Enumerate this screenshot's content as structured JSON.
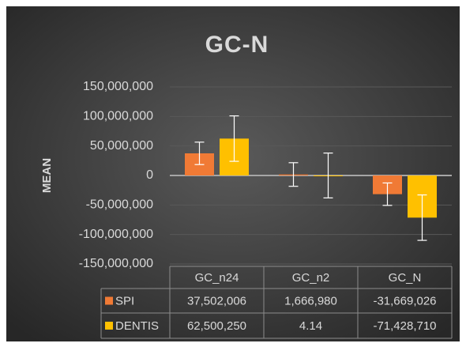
{
  "chart_data": {
    "type": "bar",
    "title": "GC-N",
    "y_label": "MEAN",
    "categories": [
      "GC_n24",
      "GC_n2",
      "GC_N"
    ],
    "series": [
      {
        "name": "SPI",
        "color": "#f07a35",
        "values": [
          37502006,
          1666980,
          -31669026
        ],
        "value_labels": [
          "37,502,006",
          "1,666,980",
          "-31,669,026"
        ],
        "errors": [
          19000000,
          20000000,
          19000000
        ]
      },
      {
        "name": "DENTIS",
        "color": "#ffc000",
        "values": [
          62500250,
          4.14,
          -71428710
        ],
        "value_labels": [
          "62,500,250",
          "4.14",
          "-71,428,710"
        ],
        "errors": [
          38500000,
          38000000,
          38500000
        ]
      }
    ],
    "ylim": [
      -150000000,
      150000000
    ],
    "yticks": [
      {
        "value": -150000000,
        "label": "-150,000,000"
      },
      {
        "value": -100000000,
        "label": "-100,000,000"
      },
      {
        "value": -50000000,
        "label": "-50,000,000"
      },
      0,
      {
        "value": 50000000,
        "label": "50,000,000"
      },
      {
        "value": 100000000,
        "label": "100,000,000"
      },
      {
        "value": 150000000,
        "label": "150,000,000"
      }
    ],
    "grid": true,
    "data_table": true
  }
}
